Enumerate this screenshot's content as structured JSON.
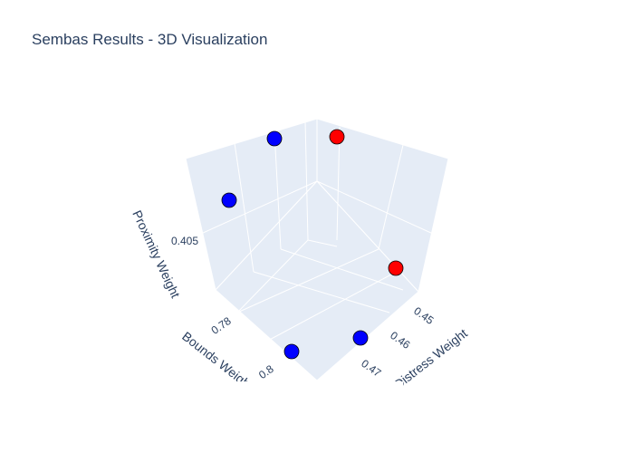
{
  "chart_data": {
    "type": "scatter3d",
    "title": "Sembas Results - 3D Visualization",
    "axes": {
      "x": {
        "label": "Distress Weight",
        "ticks": [
          "0.45",
          "0.46",
          "0.47"
        ]
      },
      "y": {
        "label": "Bounds Weight",
        "ticks": [
          "0.78",
          "0.8"
        ]
      },
      "z": {
        "label": "Proximity Weight",
        "ticks": [
          "0.405"
        ]
      }
    },
    "colors": {
      "blue": "#0000ff",
      "red": "#ff0000",
      "pane": "#e5ecf6",
      "text": "#2a3f5f"
    },
    "points": [
      {
        "distress": 0.447,
        "bounds": 0.808,
        "proximity": 0.416,
        "color": "blue"
      },
      {
        "distress": 0.453,
        "bounds": 0.785,
        "proximity": 0.412,
        "color": "blue"
      },
      {
        "distress": 0.466,
        "bounds": 0.805,
        "proximity": 0.398,
        "color": "blue"
      },
      {
        "distress": 0.473,
        "bounds": 0.79,
        "proximity": 0.392,
        "color": "blue"
      },
      {
        "distress": 0.44,
        "bounds": 0.775,
        "proximity": 0.418,
        "color": "red"
      },
      {
        "distress": 0.451,
        "bounds": 0.77,
        "proximity": 0.396,
        "color": "red"
      }
    ]
  }
}
